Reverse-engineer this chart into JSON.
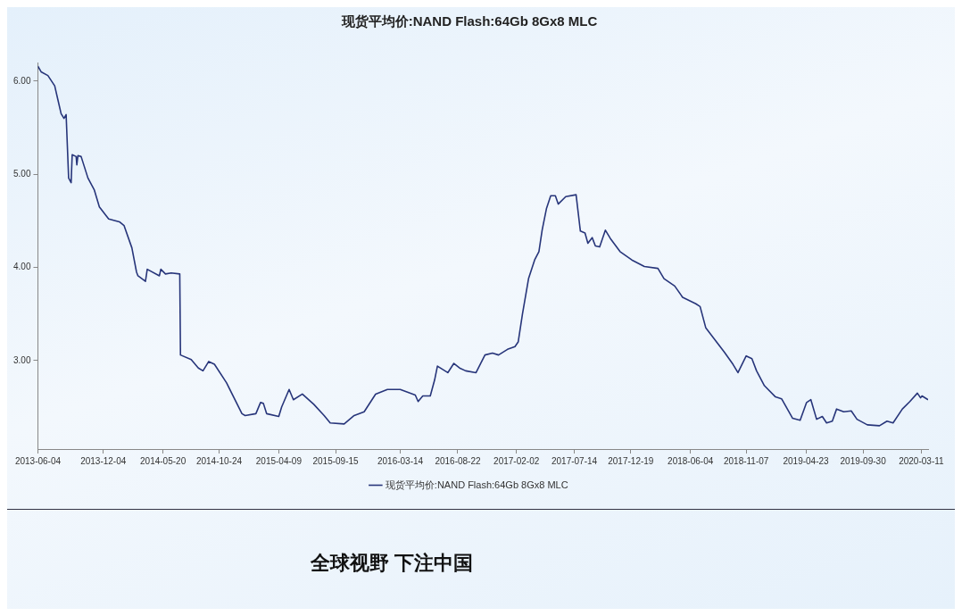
{
  "chart_data": {
    "type": "line",
    "title": "现货平均价:NAND Flash:64Gb 8Gx8 MLC",
    "x": [
      "2013-06-04",
      "2013-06-13",
      "2013-07-02",
      "2013-07-21",
      "2013-07-30",
      "2013-08-08",
      "2013-08-16",
      "2013-08-22",
      "2013-08-29",
      "2013-09-05",
      "2013-09-08",
      "2013-09-19",
      "2013-09-21",
      "2013-09-24",
      "2013-10-03",
      "2013-10-22",
      "2013-11-09",
      "2013-11-23",
      "2013-12-19",
      "2014-01-18",
      "2014-01-31",
      "2014-02-22",
      "2014-03-07",
      "2014-03-11",
      "2014-04-01",
      "2014-04-06",
      "2014-05-10",
      "2014-05-14",
      "2014-05-27",
      "2014-06-12",
      "2014-07-06",
      "2014-07-08",
      "2014-08-07",
      "2014-08-27",
      "2014-09-09",
      "2014-09-25",
      "2014-10-11",
      "2014-11-14",
      "2014-12-27",
      "2015-01-05",
      "2015-02-04",
      "2015-02-17",
      "2015-02-25",
      "2015-03-06",
      "2015-04-09",
      "2015-04-17",
      "2015-05-08",
      "2015-05-20",
      "2015-06-14",
      "2015-07-16",
      "2015-08-14",
      "2015-08-31",
      "2015-10-09",
      "2015-11-06",
      "2015-12-04",
      "2016-01-05",
      "2016-02-07",
      "2016-03-14",
      "2016-04-25",
      "2016-05-03",
      "2016-05-16",
      "2016-06-06",
      "2016-06-18",
      "2016-06-26",
      "2016-07-25",
      "2016-08-11",
      "2016-08-27",
      "2016-09-13",
      "2016-10-12",
      "2016-11-06",
      "2016-11-27",
      "2016-12-14",
      "2017-01-08",
      "2017-01-29",
      "2017-02-07",
      "2017-02-19",
      "2017-03-08",
      "2017-03-25",
      "2017-04-06",
      "2017-04-15",
      "2017-04-27",
      "2017-05-09",
      "2017-05-22",
      "2017-05-30",
      "2017-06-20",
      "2017-07-19",
      "2017-07-31",
      "2017-08-13",
      "2017-08-21",
      "2017-09-02",
      "2017-09-11",
      "2017-09-23",
      "2017-10-09",
      "2017-10-23",
      "2017-11-19",
      "2017-12-22",
      "2018-01-26",
      "2018-03-05",
      "2018-03-22",
      "2018-04-21",
      "2018-05-13",
      "2018-06-19",
      "2018-07-01",
      "2018-07-17",
      "2018-08-06",
      "2018-09-07",
      "2018-10-01",
      "2018-10-15",
      "2018-11-07",
      "2018-11-23",
      "2018-12-06",
      "2018-12-28",
      "2019-01-28",
      "2019-02-14",
      "2019-03-17",
      "2019-04-07",
      "2019-04-25",
      "2019-05-07",
      "2019-05-23",
      "2019-06-08",
      "2019-06-20",
      "2019-07-06",
      "2019-07-18",
      "2019-08-07",
      "2019-08-28",
      "2019-09-13",
      "2019-10-12",
      "2019-11-15",
      "2019-12-06",
      "2019-12-23",
      "2020-01-18",
      "2020-02-08",
      "2020-02-29",
      "2020-03-09",
      "2020-03-13",
      "2020-03-30"
    ],
    "series": [
      {
        "name": "现货平均价:NAND Flash:64Gb 8Gx8 MLC",
        "color": "#27357a",
        "values": [
          6.16,
          6.1,
          6.06,
          5.95,
          5.8,
          5.65,
          5.6,
          5.64,
          4.96,
          4.91,
          5.21,
          5.19,
          5.1,
          5.2,
          5.19,
          4.96,
          4.83,
          4.65,
          4.52,
          4.49,
          4.45,
          4.21,
          3.95,
          3.91,
          3.85,
          3.98,
          3.91,
          3.98,
          3.93,
          3.94,
          3.93,
          3.06,
          3.01,
          2.92,
          2.89,
          2.99,
          2.96,
          2.76,
          2.43,
          2.41,
          2.43,
          2.55,
          2.54,
          2.43,
          2.4,
          2.5,
          2.69,
          2.58,
          2.64,
          2.53,
          2.41,
          2.33,
          2.32,
          2.41,
          2.45,
          2.64,
          2.69,
          2.69,
          2.63,
          2.56,
          2.62,
          2.62,
          2.79,
          2.94,
          2.87,
          2.97,
          2.92,
          2.89,
          2.87,
          3.06,
          3.08,
          3.06,
          3.12,
          3.15,
          3.2,
          3.5,
          3.88,
          4.08,
          4.17,
          4.4,
          4.63,
          4.77,
          4.77,
          4.68,
          4.76,
          4.78,
          4.39,
          4.37,
          4.26,
          4.32,
          4.23,
          4.22,
          4.4,
          4.31,
          4.17,
          4.08,
          4.01,
          3.99,
          3.88,
          3.8,
          3.68,
          3.61,
          3.58,
          3.35,
          3.25,
          3.09,
          2.96,
          2.87,
          3.05,
          3.02,
          2.89,
          2.73,
          2.61,
          2.59,
          2.38,
          2.36,
          2.55,
          2.58,
          2.37,
          2.4,
          2.33,
          2.35,
          2.48,
          2.45,
          2.46,
          2.37,
          2.31,
          2.3,
          2.35,
          2.33,
          2.48,
          2.56,
          2.65,
          2.6,
          2.62,
          2.58
        ]
      }
    ],
    "xlim": [
      "2013-06-04",
      "2020-03-30"
    ],
    "xticks": [
      "2013-06-04",
      "2013-12-04",
      "2014-05-20",
      "2014-10-24",
      "2015-04-09",
      "2015-09-15",
      "2016-03-14",
      "2016-08-22",
      "2017-02-02",
      "2017-07-14",
      "2017-12-19",
      "2018-06-04",
      "2018-11-07",
      "2019-04-23",
      "2019-09-30",
      "2020-03-11"
    ],
    "ylim": [
      2.05,
      6.2
    ],
    "yticks": [
      {
        "value": 3,
        "label": "3.00"
      },
      {
        "value": 4,
        "label": "4.00"
      },
      {
        "value": 5,
        "label": "5.00"
      },
      {
        "value": 6,
        "label": "6.00"
      }
    ],
    "grid": false,
    "legend": "bottom",
    "marker": "none",
    "line_style": "solid",
    "annotations": [
      "全球视野 下注中国"
    ]
  }
}
